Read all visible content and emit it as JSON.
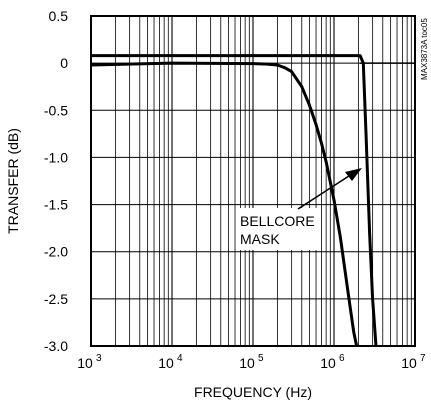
{
  "chart_data": {
    "type": "line",
    "title": "",
    "xlabel": "FREQUENCY (Hz)",
    "ylabel": "TRANSFER (dB)",
    "x_scale": "log",
    "xlim": [
      1000,
      10000000
    ],
    "ylim": [
      -3.0,
      0.5
    ],
    "x_ticks": [
      {
        "value": 1000,
        "base": "10",
        "exp": "3"
      },
      {
        "value": 10000,
        "base": "10",
        "exp": "4"
      },
      {
        "value": 100000,
        "base": "10",
        "exp": "5"
      },
      {
        "value": 1000000,
        "base": "10",
        "exp": "6"
      },
      {
        "value": 10000000,
        "base": "10",
        "exp": "7"
      }
    ],
    "y_ticks": [
      {
        "value": 0.5,
        "label": "0.5"
      },
      {
        "value": 0,
        "label": "0"
      },
      {
        "value": -0.5,
        "label": "-0.5"
      },
      {
        "value": -1.0,
        "label": "-1.0"
      },
      {
        "value": -1.5,
        "label": "-1.5"
      },
      {
        "value": -2.0,
        "label": "-2.0"
      },
      {
        "value": -2.5,
        "label": "-2.5"
      },
      {
        "value": -3.0,
        "label": "-3.0"
      }
    ],
    "grid": true,
    "series": [
      {
        "x": [
          1000,
          10000,
          100000,
          150000,
          200000,
          250000,
          300000,
          400000,
          500000,
          600000,
          700000,
          800000,
          1000000,
          1200000,
          1500000,
          1750000,
          1900000
        ],
        "y": [
          -0.02,
          0.0,
          -0.005,
          -0.01,
          -0.02,
          -0.05,
          -0.09,
          -0.25,
          -0.45,
          -0.65,
          -0.85,
          -1.05,
          -1.45,
          -1.85,
          -2.45,
          -2.85,
          -3.0
        ]
      },
      {
        "x": [
          1000,
          10000,
          100000,
          1000000,
          2100000,
          2300000,
          2500000,
          2750000,
          3000000,
          3300000
        ],
        "y": [
          0.08,
          0.08,
          0.08,
          0.08,
          0.08,
          0.0,
          -0.8,
          -1.8,
          -2.5,
          -3.0
        ]
      },
      {
        "x": [
          2100000,
          10000000
        ],
        "y": [
          0.0,
          0.0
        ]
      }
    ],
    "annotations": [
      {
        "line1": "BELLCORE",
        "line2": "MASK"
      }
    ],
    "figure_code": "MAX3873A toc05"
  }
}
